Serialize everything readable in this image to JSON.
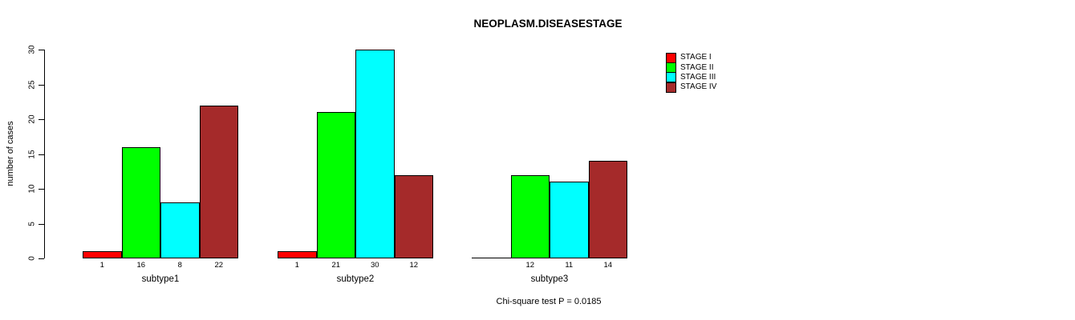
{
  "title": "NEOPLASM.DISEASESTAGE",
  "footer": "Chi-square test P = 0.0185",
  "y_axis": {
    "label": "number of cases",
    "ticks": [
      0,
      5,
      10,
      15,
      20,
      25,
      30
    ],
    "max": 30
  },
  "legend": {
    "items": [
      {
        "label": "STAGE I",
        "color": "#FF0000"
      },
      {
        "label": "STAGE II",
        "color": "#00FF00"
      },
      {
        "label": "STAGE III",
        "color": "#00FFFF"
      },
      {
        "label": "STAGE IV",
        "color": "#A52A2A"
      }
    ]
  },
  "chart_data": {
    "type": "bar",
    "title": "NEOPLASM.DISEASESTAGE",
    "xlabel": "",
    "ylabel": "number of cases",
    "ylim": [
      0,
      30
    ],
    "grid": false,
    "legend_position": "right",
    "categories": [
      "subtype1",
      "subtype2",
      "subtype3"
    ],
    "series": [
      {
        "name": "STAGE I",
        "color": "#FF0000",
        "values": [
          1,
          1,
          0
        ]
      },
      {
        "name": "STAGE II",
        "color": "#00FF00",
        "values": [
          16,
          21,
          12
        ]
      },
      {
        "name": "STAGE III",
        "color": "#00FFFF",
        "values": [
          8,
          30,
          11
        ]
      },
      {
        "name": "STAGE IV",
        "color": "#A52A2A",
        "values": [
          22,
          12,
          14
        ]
      }
    ],
    "bar_value_labels": [
      [
        "1",
        "16",
        "8",
        "22"
      ],
      [
        "1",
        "21",
        "30",
        "12"
      ],
      [
        "",
        "12",
        "11",
        "14"
      ]
    ],
    "annotation": "Chi-square test P = 0.0185",
    "bar_border_color": "#000000"
  }
}
